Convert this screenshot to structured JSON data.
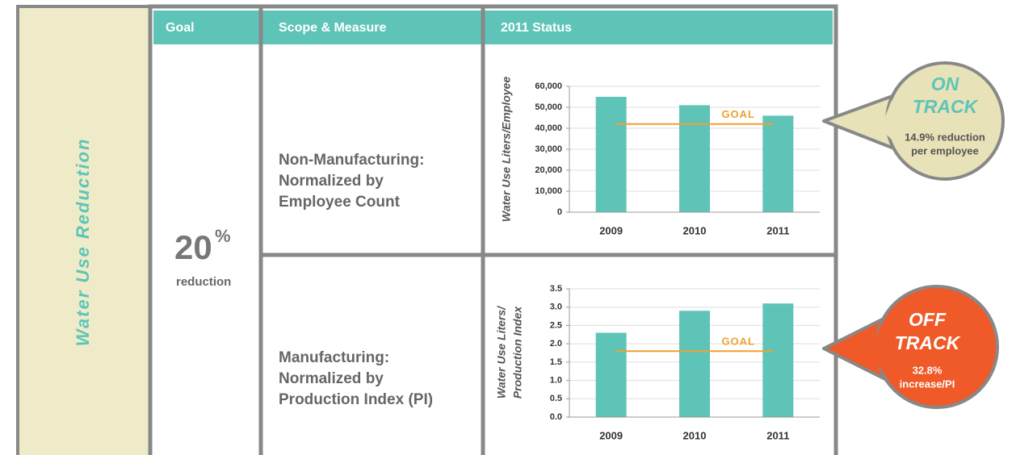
{
  "sidebar": "Water Use Reduction",
  "header": [
    "Goal",
    "Scope & Measure",
    "2011 Status"
  ],
  "goal": {
    "value": "20",
    "unit": "%",
    "caption": "reduction"
  },
  "rows": [
    {
      "scope": [
        "Non-Manufacturing:",
        "Normalized by",
        "Employee Count"
      ],
      "status": {
        "headline": [
          "ON",
          "TRACK"
        ],
        "note": [
          "14.9% reduction",
          "per employee"
        ]
      }
    },
    {
      "scope": [
        "Manufacturing:",
        "Normalized by",
        "Production Index (PI)"
      ],
      "status": {
        "headline": [
          "OFF",
          "TRACK"
        ],
        "note": [
          "32.8%",
          "increase/PI"
        ]
      }
    }
  ],
  "chart_data": [
    {
      "type": "bar",
      "y_label": [
        "Water Use Liters/Employee"
      ],
      "categories": [
        "2009",
        "2010",
        "2011"
      ],
      "values": [
        55000,
        51000,
        46000
      ],
      "color": "#5fc4b8",
      "ylim": [
        0,
        60000
      ],
      "yticks": [
        0,
        {
          "value": 10000,
          "label": "10,000"
        },
        {
          "value": 20000,
          "label": "20,000"
        },
        {
          "value": 30000,
          "label": "30,000"
        },
        {
          "value": 40000,
          "label": "40,000"
        },
        {
          "value": 50000,
          "label": "50,000"
        },
        {
          "value": 60000,
          "label": "60,000"
        }
      ],
      "grid": true,
      "goal": {
        "label": "GOAL",
        "value": 42000,
        "color": "#f0a030"
      }
    },
    {
      "type": "bar",
      "y_label": [
        "Water Use Liters/",
        "Production Index"
      ],
      "categories": [
        "2009",
        "2010",
        "2011"
      ],
      "values": [
        2.3,
        2.9,
        3.1
      ],
      "color": "#5fc4b8",
      "ylim": [
        0,
        3.5
      ],
      "yticks": [
        {
          "value": 0,
          "label": "0.0"
        },
        0.5,
        {
          "value": 1,
          "label": "1.0"
        },
        1.5,
        {
          "value": 2,
          "label": "2.0"
        },
        2.5,
        {
          "value": 3,
          "label": "3.0"
        },
        3.5
      ],
      "grid": true,
      "goal": {
        "label": "GOAL",
        "value": 1.8,
        "color": "#f0a030"
      }
    }
  ]
}
